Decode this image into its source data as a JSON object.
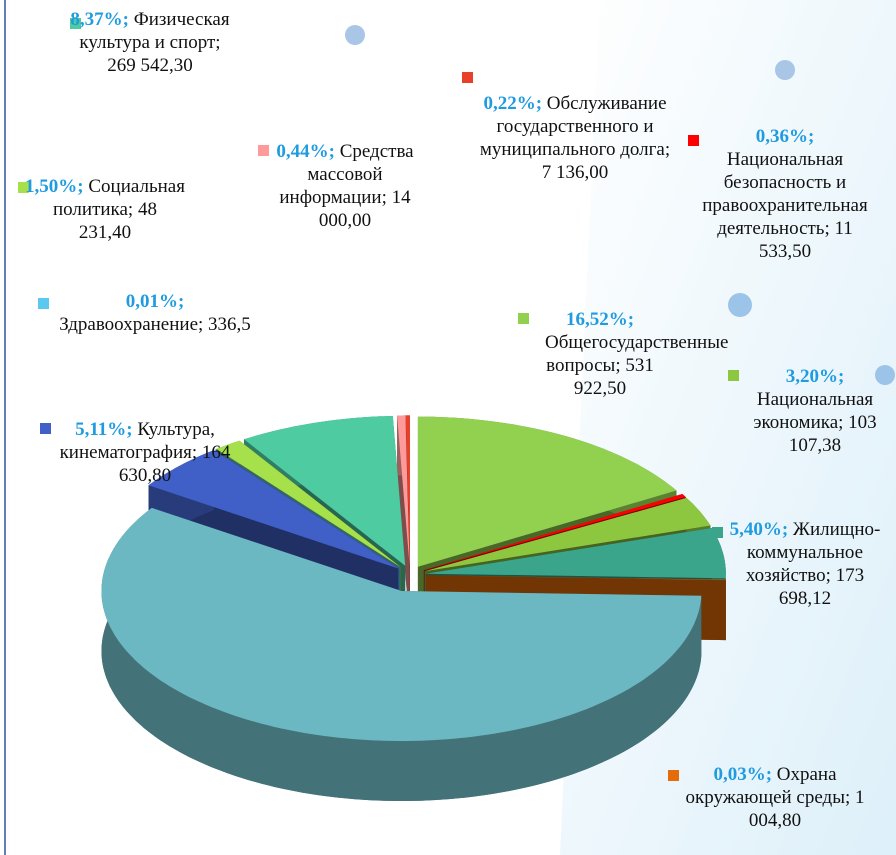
{
  "chart_data": {
    "type": "pie3d",
    "categories": [
      "Общегосударственные вопросы; 531 922,50",
      "Национальная безопасность и правоохранительная деятельность; 11 533,50",
      "Национальная экономика; 103 107,38",
      "Жилищно-коммунальное хозяйство; 173 698,12",
      "Охрана окружающей среды; 1 004,80",
      null,
      "Культура, кинематография; 164 630,80",
      "Здравоохранение; 336,5",
      "Социальная политика; 48 231,40",
      "Физическая культура и спорт; 269 542,30",
      "Средства массовой информации; 14 000,00",
      "Обслуживание государственного и муниципального долга; 7 136,00"
    ],
    "values": [
      16.52,
      0.36,
      3.2,
      5.4,
      0.03,
      58.84,
      5.11,
      0.01,
      1.5,
      8.37,
      0.44,
      0.22
    ],
    "value_labels": [
      "16,52%;",
      "0,36%;",
      "3,20%;",
      "5,40%;",
      "0,03%;",
      null,
      "5,11%;",
      "0,01%;",
      "1,50%;",
      "8,37%;",
      "0,44%;",
      "0,22%;"
    ],
    "colors": [
      "#92d050",
      "#ff0000",
      "#8dc63f",
      "#3aa58a",
      "#e46c0a",
      "#6cb8c2",
      "#4060c8",
      "#5bc8f0",
      "#a6e04a",
      "#4ecba0",
      "#ff9a9a",
      "#e8402a"
    ]
  }
}
